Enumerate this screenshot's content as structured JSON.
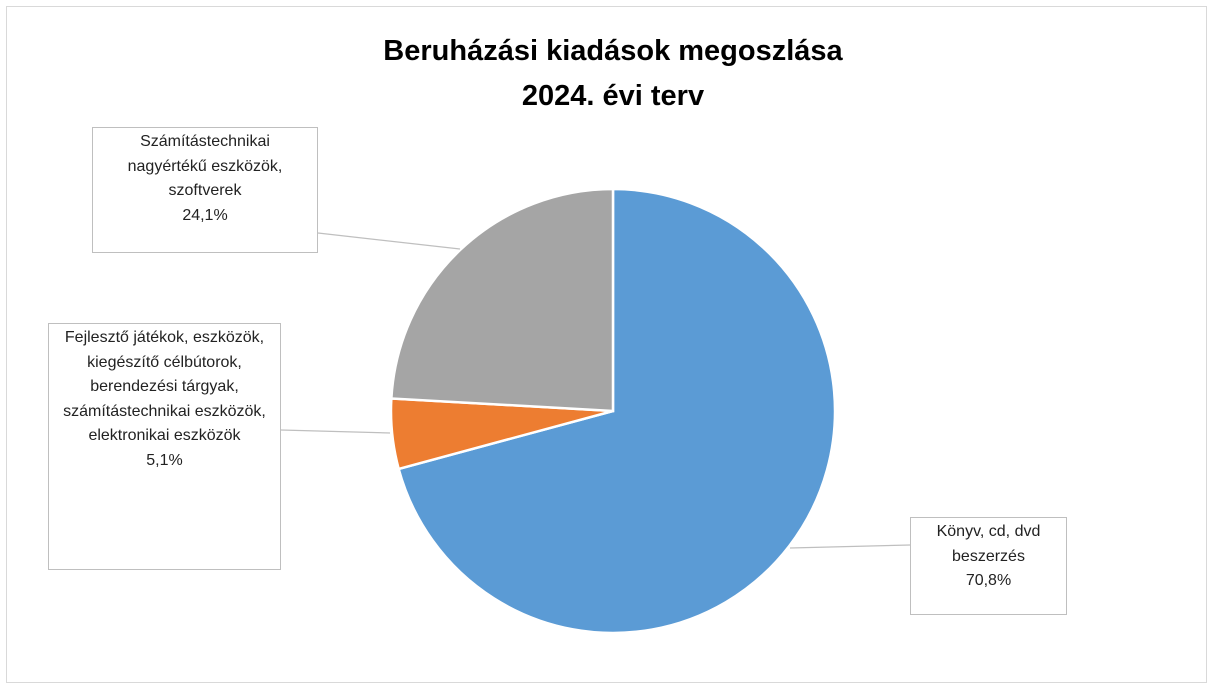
{
  "chart_data": {
    "type": "pie",
    "title": [
      "Beruházási kiadások megoszlása",
      "2024. évi terv"
    ],
    "categories": [
      "Könyv, cd, dvd beszerzés",
      "Fejlesztő játékok, eszközök, kiegészítő célbútorok, berendezési tárgyak, számítástechnikai eszközök, elektronikai eszközök",
      "Számítástechnikai nagyértékű eszközök, szoftverek"
    ],
    "values": [
      70.8,
      5.1,
      24.1
    ],
    "value_labels": [
      "70,8%",
      "5,1%",
      "24,1%"
    ],
    "colors": [
      "#5b9bd5",
      "#ed7d31",
      "#a5a5a5"
    ]
  }
}
